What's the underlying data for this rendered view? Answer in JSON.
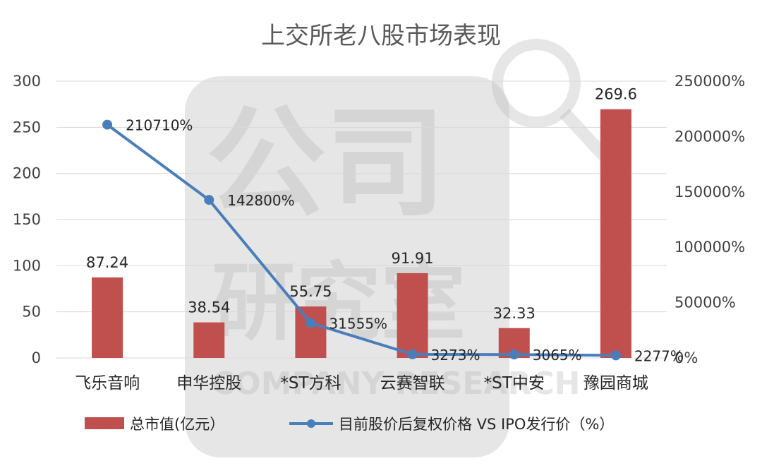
{
  "colors": {
    "bar": "#c0504d",
    "line": "#4a7ebb",
    "grid": "#d9d9d9",
    "text": "#404040"
  },
  "watermark": {
    "top_text": "公司",
    "middle_text": "研究室",
    "bottom_text": "COMPANY RESEARCH"
  },
  "chart_data": {
    "type": "bar",
    "title": "上交所老八股市场表现",
    "categories": [
      "飞乐音响",
      "申华控股",
      "*ST方科",
      "云赛智联",
      "*ST中安",
      "豫园商城"
    ],
    "series": [
      {
        "name": "总市值(亿元）",
        "type": "bar",
        "axis": "left",
        "values": [
          87.24,
          38.54,
          55.75,
          91.91,
          32.33,
          269.6
        ],
        "labels": [
          "87.24",
          "38.54",
          "55.75",
          "91.91",
          "32.33",
          "269.6"
        ]
      },
      {
        "name": "目前股价后复权价格 VS IPO发行价（%）",
        "type": "line",
        "axis": "right",
        "values": [
          210710,
          142800,
          31555,
          3273,
          3065,
          2277
        ],
        "labels": [
          "210710%",
          "142800%",
          "31555%",
          "3273%",
          "3065%",
          "2277%"
        ]
      }
    ],
    "y_left": {
      "min": 0,
      "max": 300,
      "ticks": [
        "0",
        "50",
        "100",
        "150",
        "200",
        "250",
        "300"
      ]
    },
    "y_right": {
      "min": 0,
      "max": 250000,
      "ticks": [
        "0%",
        "50000%",
        "100000%",
        "150000%",
        "200000%",
        "250000%"
      ]
    },
    "grid": true,
    "legend_position": "bottom"
  }
}
